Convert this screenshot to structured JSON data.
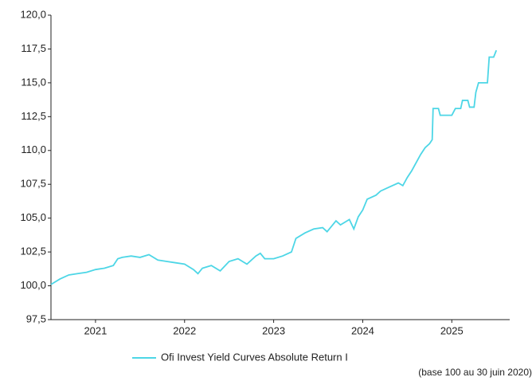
{
  "chart_data": {
    "type": "line",
    "x": [
      2020.5,
      2020.6,
      2020.7,
      2020.8,
      2020.9,
      2021.0,
      2021.1,
      2021.2,
      2021.25,
      2021.3,
      2021.4,
      2021.5,
      2021.6,
      2021.7,
      2021.8,
      2021.9,
      2022.0,
      2022.1,
      2022.15,
      2022.2,
      2022.3,
      2022.4,
      2022.5,
      2022.6,
      2022.7,
      2022.8,
      2022.85,
      2022.9,
      2023.0,
      2023.1,
      2023.2,
      2023.25,
      2023.35,
      2023.45,
      2023.55,
      2023.6,
      2023.7,
      2023.75,
      2023.85,
      2023.9,
      2023.95,
      2024.0,
      2024.05,
      2024.15,
      2024.2,
      2024.3,
      2024.4,
      2024.45,
      2024.5,
      2024.55,
      2024.65,
      2024.7,
      2024.75,
      2024.78,
      2024.79,
      2024.85,
      2024.87,
      2025.0,
      2025.04,
      2025.1,
      2025.12,
      2025.18,
      2025.2,
      2025.25,
      2025.27,
      2025.3,
      2025.4,
      2025.42,
      2025.47,
      2025.5
    ],
    "series": [
      {
        "name": "Ofi Invest Yield Curves Absolute Return I",
        "color": "#4dd6e6",
        "values": [
          100.1,
          100.5,
          100.8,
          100.9,
          101.0,
          101.2,
          101.3,
          101.5,
          102.0,
          102.1,
          102.2,
          102.1,
          102.3,
          101.9,
          101.8,
          101.7,
          101.6,
          101.2,
          100.9,
          101.3,
          101.5,
          101.1,
          101.8,
          102.0,
          101.6,
          102.2,
          102.4,
          102.0,
          102.0,
          102.2,
          102.5,
          103.5,
          103.9,
          104.2,
          104.3,
          104.0,
          104.8,
          104.5,
          104.9,
          104.2,
          105.1,
          105.6,
          106.4,
          106.7,
          107.0,
          107.3,
          107.6,
          107.4,
          108.0,
          108.5,
          109.7,
          110.2,
          110.5,
          110.8,
          113.1,
          113.1,
          112.6,
          112.6,
          113.1,
          113.1,
          113.7,
          113.7,
          113.2,
          113.2,
          114.3,
          115.0,
          115.0,
          116.9,
          116.9,
          117.4
        ]
      }
    ],
    "xlim": [
      2020.5,
      2025.65
    ],
    "xticks": [
      2021,
      2022,
      2023,
      2024,
      2025
    ],
    "ylim": [
      97.5,
      120
    ],
    "yticks": [
      {
        "value": 97.5,
        "label": "97,5"
      },
      {
        "value": 100,
        "label": "100,0"
      },
      {
        "value": 102.5,
        "label": "102,5"
      },
      {
        "value": 105,
        "label": "105,0"
      },
      {
        "value": 107.5,
        "label": "107,5"
      },
      {
        "value": 110,
        "label": "110,0"
      },
      {
        "value": 112.5,
        "label": "112,5"
      },
      {
        "value": 115,
        "label": "115,0"
      },
      {
        "value": 117.5,
        "label": "117,5"
      },
      {
        "value": 120,
        "label": "120,0"
      }
    ],
    "annotation": "(base 100 au 30 juin 2020)"
  }
}
